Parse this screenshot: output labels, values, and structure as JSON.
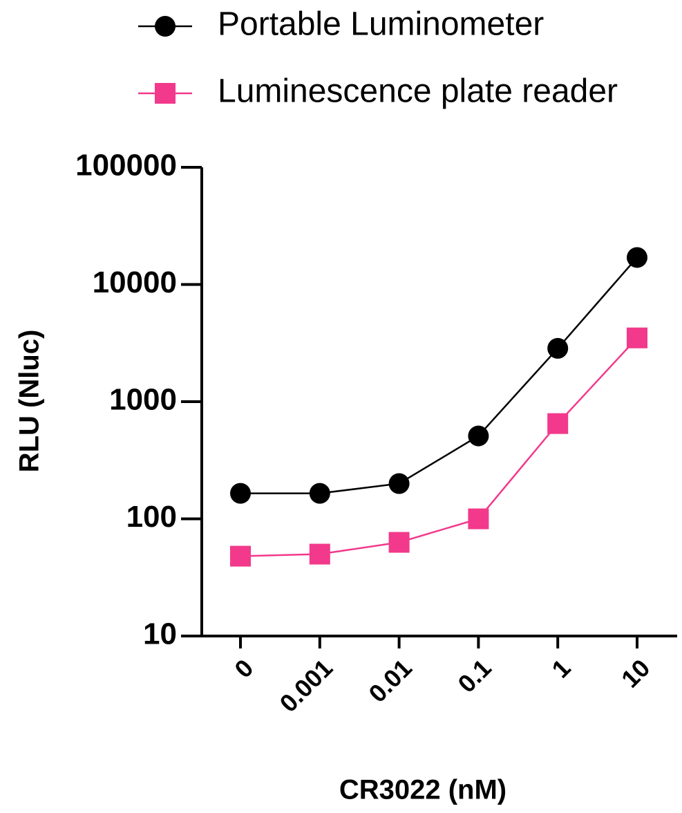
{
  "chart_data": {
    "type": "line",
    "x_label": "CR3022 (nM)",
    "y_label": "RLU (Nluc)",
    "categories": [
      "0",
      "0.001",
      "0.01",
      "0.1",
      "1",
      "10"
    ],
    "series": [
      {
        "name": "Portable Luminometer",
        "color": "#000000",
        "marker": "circle",
        "values": [
          165,
          165,
          200,
          510,
          2850,
          17000
        ]
      },
      {
        "name": "Luminescence plate reader",
        "color": "#f2398b",
        "marker": "square",
        "values": [
          48,
          50,
          63,
          100,
          650,
          3500
        ]
      }
    ],
    "log_scale": true,
    "ylim": [
      10,
      100000
    ],
    "yticks": [
      10,
      100,
      1000,
      10000,
      100000
    ],
    "legend": "top"
  }
}
